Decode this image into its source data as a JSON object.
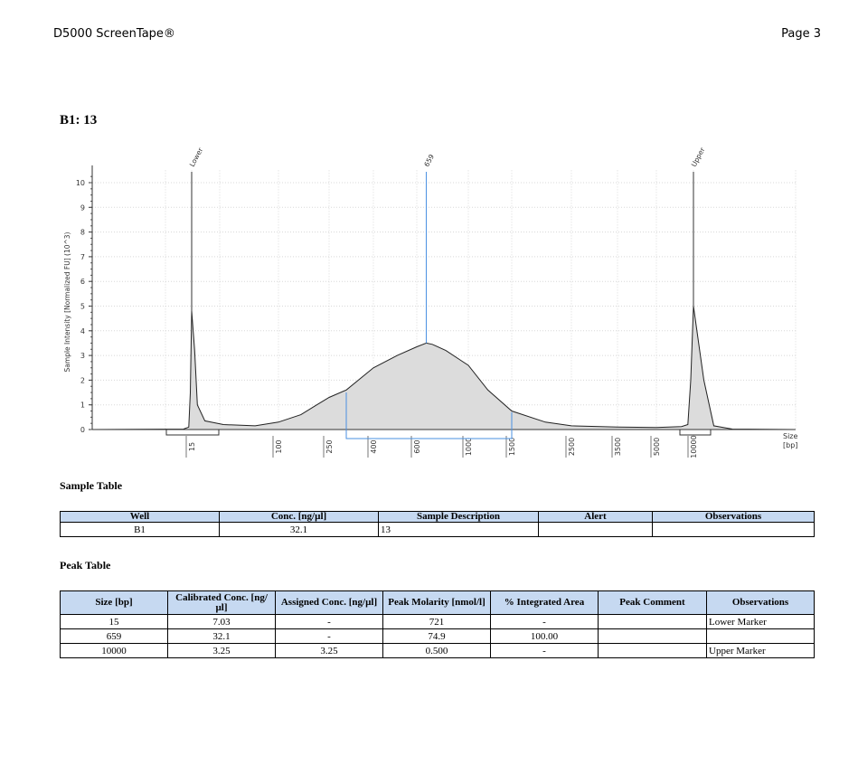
{
  "header": {
    "title": "D5000 ScreenTape®",
    "page": "Page 3"
  },
  "sample_title": "B1: 13",
  "chart_data": {
    "type": "line",
    "ylabel": "Sample Intensity [Normalized FU] (10^3)",
    "xlabel": "Size\n[bp]",
    "y_ticks": [
      0,
      1,
      2,
      3,
      4,
      5,
      6,
      7,
      8,
      9,
      10
    ],
    "ylim": [
      0,
      10.5
    ],
    "x_ticks": [
      "15",
      "100",
      "250",
      "400",
      "600",
      "1000",
      "1500",
      "2500",
      "3500",
      "5000",
      "10000"
    ],
    "grid": true,
    "peak_labels": [
      {
        "label": "Lower",
        "x": 15,
        "height": 4.8
      },
      {
        "label": "659",
        "x": 659,
        "height": 3.5
      },
      {
        "label": "Upper",
        "x": 10000,
        "height": 5.0
      }
    ],
    "region": {
      "from": 300,
      "to": 1500
    },
    "trace": [
      [
        10,
        0.02
      ],
      [
        13,
        0.1
      ],
      [
        14,
        1.5
      ],
      [
        15,
        4.8
      ],
      [
        16,
        3.2
      ],
      [
        17,
        1.0
      ],
      [
        20,
        0.35
      ],
      [
        30,
        0.2
      ],
      [
        60,
        0.15
      ],
      [
        100,
        0.3
      ],
      [
        150,
        0.6
      ],
      [
        200,
        1.0
      ],
      [
        250,
        1.3
      ],
      [
        300,
        1.6
      ],
      [
        400,
        2.5
      ],
      [
        500,
        3.0
      ],
      [
        600,
        3.35
      ],
      [
        659,
        3.5
      ],
      [
        700,
        3.45
      ],
      [
        800,
        3.2
      ],
      [
        1000,
        2.6
      ],
      [
        1200,
        1.6
      ],
      [
        1500,
        0.75
      ],
      [
        2000,
        0.3
      ],
      [
        2500,
        0.15
      ],
      [
        3500,
        0.1
      ],
      [
        5000,
        0.08
      ],
      [
        8000,
        0.12
      ],
      [
        9000,
        0.2
      ],
      [
        9500,
        2.0
      ],
      [
        10000,
        5.0
      ],
      [
        10500,
        2.0
      ],
      [
        11000,
        0.15
      ],
      [
        12000,
        0.02
      ]
    ]
  },
  "sample_table": {
    "title": "Sample Table",
    "headers": [
      "Well",
      "Conc. [ng/µl]",
      "Sample Description",
      "Alert",
      "Observations"
    ],
    "rows": [
      [
        "B1",
        "32.1",
        "13",
        "",
        ""
      ]
    ]
  },
  "peak_table": {
    "title": "Peak Table",
    "headers": [
      "Size [bp]",
      "Calibrated Conc. [ng/µl]",
      "Assigned Conc. [ng/µl]",
      "Peak Molarity [nmol/l]",
      "% Integrated Area",
      "Peak Comment",
      "Observations"
    ],
    "rows": [
      [
        "15",
        "7.03",
        "-",
        "721",
        "-",
        "",
        "Lower Marker"
      ],
      [
        "659",
        "32.1",
        "-",
        "74.9",
        "100.00",
        "",
        ""
      ],
      [
        "10000",
        "3.25",
        "3.25",
        "0.500",
        "-",
        "",
        "Upper Marker"
      ]
    ]
  }
}
